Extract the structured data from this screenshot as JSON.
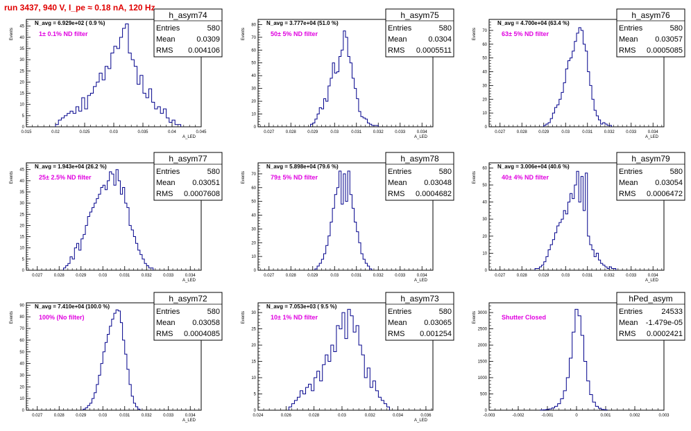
{
  "page": {
    "title": "run 3437,   940 V, I_pe ≈ 0.18 nA, 120 Hz"
  },
  "chart_data": [
    {
      "type": "histogram",
      "name": "h_asym74",
      "entries": "580",
      "mean": "0.0309",
      "rms": "0.004106",
      "navg_label": "N_avg = 6.929e+02 ( 0.9 %)",
      "filter_label": "1± 0.1% ND filter",
      "xlabel": "A_LED",
      "ylabel": "Events",
      "xlim": [
        0.015,
        0.045
      ],
      "ylim": [
        0,
        48
      ],
      "xticks": [
        0.015,
        0.02,
        0.025,
        0.03,
        0.035,
        0.04,
        0.045
      ],
      "xtick_labels": [
        "0.015",
        "0.02",
        "0.025",
        "0.03",
        "0.035",
        "0.04",
        "0.045"
      ],
      "yticks": [
        0,
        5,
        10,
        15,
        20,
        25,
        30,
        35,
        40,
        45
      ],
      "bin_edges": [
        0.02,
        0.0205,
        0.021,
        0.0215,
        0.022,
        0.0225,
        0.023,
        0.0235,
        0.024,
        0.0245,
        0.025,
        0.0255,
        0.026,
        0.0265,
        0.027,
        0.0275,
        0.028,
        0.0285,
        0.029,
        0.0295,
        0.03,
        0.0305,
        0.031,
        0.0315,
        0.032,
        0.0325,
        0.033,
        0.0335,
        0.034,
        0.0345,
        0.035,
        0.0355,
        0.036,
        0.0365,
        0.037,
        0.0375,
        0.038,
        0.0385,
        0.039,
        0.0395,
        0.04,
        0.0405,
        0.041,
        0.0415
      ],
      "counts": [
        1,
        3,
        4,
        5,
        6,
        7,
        6,
        9,
        7,
        13,
        8,
        14,
        15,
        18,
        20,
        24,
        21,
        27,
        26,
        33,
        36,
        35,
        40,
        44,
        46,
        33,
        30,
        27,
        19,
        23,
        15,
        13,
        17,
        11,
        8,
        9,
        6,
        8,
        4,
        2,
        3,
        1,
        1
      ]
    },
    {
      "type": "histogram",
      "name": "h_asym75",
      "entries": "580",
      "mean": "0.0304",
      "rms": "0.0005511",
      "navg_label": "N_avg = 3.777e+04 (51.0 %)",
      "filter_label": "50± 5% ND filter",
      "xlabel": "A_LED",
      "ylabel": "Events",
      "xlim": [
        0.0265,
        0.0345
      ],
      "ylim": [
        0,
        84
      ],
      "xticks": [
        0.027,
        0.028,
        0.029,
        0.03,
        0.031,
        0.032,
        0.033,
        0.034
      ],
      "xtick_labels": [
        "0.027",
        "0.028",
        "0.029",
        "0.03",
        "0.031",
        "0.032",
        "0.033",
        "0.034"
      ],
      "yticks": [
        0,
        10,
        20,
        30,
        40,
        50,
        60,
        70,
        80
      ],
      "bin_edges": [
        0.0289,
        0.029,
        0.0291,
        0.0292,
        0.0293,
        0.0294,
        0.0295,
        0.0296,
        0.0297,
        0.0298,
        0.0299,
        0.03,
        0.0301,
        0.0302,
        0.0303,
        0.0304,
        0.0305,
        0.0306,
        0.0307,
        0.0308,
        0.0309,
        0.031,
        0.0311,
        0.0312,
        0.0313,
        0.0314,
        0.0315,
        0.0316,
        0.0317,
        0.0318,
        0.0319,
        0.032
      ],
      "counts": [
        2,
        3,
        6,
        10,
        15,
        14,
        22,
        20,
        32,
        38,
        50,
        42,
        43,
        55,
        60,
        75,
        70,
        55,
        50,
        38,
        30,
        22,
        12,
        8,
        7,
        6,
        3,
        2,
        1,
        1,
        1
      ]
    },
    {
      "type": "histogram",
      "name": "h_asym76",
      "entries": "580",
      "mean": "0.03057",
      "rms": "0.0005085",
      "navg_label": "N_avg = 4.700e+04 (63.4 %)",
      "filter_label": "63± 5% ND filter",
      "xlabel": "A_LED",
      "ylabel": "Events",
      "xlim": [
        0.0265,
        0.0345
      ],
      "ylim": [
        0,
        78
      ],
      "xticks": [
        0.027,
        0.028,
        0.029,
        0.03,
        0.031,
        0.032,
        0.033,
        0.034
      ],
      "xtick_labels": [
        "0.027",
        "0.028",
        "0.029",
        "0.03",
        "0.031",
        "0.032",
        "0.033",
        "0.034"
      ],
      "yticks": [
        0,
        10,
        20,
        30,
        40,
        50,
        60,
        70
      ],
      "bin_edges": [
        0.029,
        0.0291,
        0.0292,
        0.0293,
        0.0294,
        0.0295,
        0.0296,
        0.0297,
        0.0298,
        0.0299,
        0.03,
        0.0301,
        0.0302,
        0.0303,
        0.0304,
        0.0305,
        0.0306,
        0.0307,
        0.0308,
        0.0309,
        0.031,
        0.0311,
        0.0312,
        0.0313,
        0.0314,
        0.0315,
        0.0316,
        0.0317,
        0.0318,
        0.0319,
        0.032,
        0.0321
      ],
      "counts": [
        1,
        2,
        3,
        6,
        10,
        14,
        16,
        20,
        25,
        32,
        42,
        48,
        50,
        55,
        62,
        68,
        72,
        70,
        60,
        55,
        40,
        30,
        20,
        12,
        8,
        5,
        2,
        3,
        2,
        1,
        1
      ]
    },
    {
      "type": "histogram",
      "name": "h_asym77",
      "entries": "580",
      "mean": "0.03051",
      "rms": "0.0007608",
      "navg_label": "N_avg = 1.943e+04 (26.2 %)",
      "filter_label": "25± 2.5% ND filter",
      "xlabel": "A_LED",
      "ylabel": "Events",
      "xlim": [
        0.0265,
        0.0345
      ],
      "ylim": [
        0,
        48
      ],
      "xticks": [
        0.027,
        0.028,
        0.029,
        0.03,
        0.031,
        0.032,
        0.033,
        0.034
      ],
      "xtick_labels": [
        "0.027",
        "0.028",
        "0.029",
        "0.03",
        "0.031",
        "0.032",
        "0.033",
        "0.034"
      ],
      "yticks": [
        0,
        5,
        10,
        15,
        20,
        25,
        30,
        35,
        40,
        45
      ],
      "bin_edges": [
        0.0282,
        0.0283,
        0.0284,
        0.0285,
        0.0286,
        0.0287,
        0.0288,
        0.0289,
        0.029,
        0.0291,
        0.0292,
        0.0293,
        0.0294,
        0.0295,
        0.0296,
        0.0297,
        0.0298,
        0.0299,
        0.03,
        0.0301,
        0.0302,
        0.0303,
        0.0304,
        0.0305,
        0.0306,
        0.0307,
        0.0308,
        0.0309,
        0.031,
        0.0311,
        0.0312,
        0.0313,
        0.0314,
        0.0315,
        0.0316,
        0.0317,
        0.0318,
        0.0319,
        0.032,
        0.0321,
        0.0322,
        0.0323
      ],
      "counts": [
        1,
        2,
        3,
        6,
        5,
        10,
        12,
        9,
        14,
        16,
        20,
        24,
        26,
        28,
        30,
        32,
        34,
        37,
        38,
        36,
        40,
        44,
        43,
        38,
        45,
        40,
        34,
        37,
        30,
        28,
        20,
        18,
        15,
        12,
        9,
        7,
        5,
        3,
        2,
        1,
        1
      ]
    },
    {
      "type": "histogram",
      "name": "h_asym78",
      "entries": "580",
      "mean": "0.03048",
      "rms": "0.0004682",
      "navg_label": "N_avg = 5.898e+04 (79.6 %)",
      "filter_label": "79± 5% ND filter",
      "xlabel": "A_LED",
      "ylabel": "Events",
      "xlim": [
        0.0265,
        0.0345
      ],
      "ylim": [
        0,
        78
      ],
      "xticks": [
        0.027,
        0.028,
        0.029,
        0.03,
        0.031,
        0.032,
        0.033,
        0.034
      ],
      "xtick_labels": [
        "0.027",
        "0.028",
        "0.029",
        "0.03",
        "0.031",
        "0.032",
        "0.033",
        "0.034"
      ],
      "yticks": [
        0,
        10,
        20,
        30,
        40,
        50,
        60,
        70
      ],
      "bin_edges": [
        0.0291,
        0.0292,
        0.0293,
        0.0294,
        0.0295,
        0.0296,
        0.0297,
        0.0298,
        0.0299,
        0.03,
        0.0301,
        0.0302,
        0.0303,
        0.0304,
        0.0305,
        0.0306,
        0.0307,
        0.0308,
        0.0309,
        0.031,
        0.0311,
        0.0312,
        0.0313,
        0.0314,
        0.0315,
        0.0316,
        0.0317
      ],
      "counts": [
        1,
        3,
        5,
        8,
        12,
        18,
        25,
        35,
        45,
        55,
        60,
        72,
        48,
        70,
        50,
        72,
        55,
        45,
        35,
        28,
        20,
        12,
        8,
        5,
        3,
        1
      ]
    },
    {
      "type": "histogram",
      "name": "h_asym79",
      "entries": "580",
      "mean": "0.03054",
      "rms": "0.0006472",
      "navg_label": "N_avg = 3.006e+04 (40.6 %)",
      "filter_label": "40± 4% ND filter",
      "xlabel": "A_LED",
      "ylabel": "Events",
      "xlim": [
        0.0265,
        0.0345
      ],
      "ylim": [
        0,
        63
      ],
      "xticks": [
        0.027,
        0.028,
        0.029,
        0.03,
        0.031,
        0.032,
        0.033,
        0.034
      ],
      "xtick_labels": [
        "0.027",
        "0.028",
        "0.029",
        "0.03",
        "0.031",
        "0.032",
        "0.033",
        "0.034"
      ],
      "yticks": [
        0,
        10,
        20,
        30,
        40,
        50,
        60
      ],
      "bin_edges": [
        0.0286,
        0.0287,
        0.0288,
        0.0289,
        0.029,
        0.0291,
        0.0292,
        0.0293,
        0.0294,
        0.0295,
        0.0296,
        0.0297,
        0.0298,
        0.0299,
        0.03,
        0.0301,
        0.0302,
        0.0303,
        0.0304,
        0.0305,
        0.0306,
        0.0307,
        0.0308,
        0.0309,
        0.031,
        0.0311,
        0.0312,
        0.0313,
        0.0314,
        0.0315,
        0.0316,
        0.0317,
        0.0318,
        0.0319,
        0.032,
        0.0321,
        0.0322,
        0.0323
      ],
      "counts": [
        1,
        1,
        2,
        3,
        5,
        8,
        12,
        15,
        18,
        22,
        26,
        28,
        30,
        35,
        33,
        40,
        45,
        42,
        50,
        58,
        40,
        55,
        35,
        57,
        20,
        15,
        12,
        8,
        10,
        6,
        4,
        3,
        2,
        1,
        2,
        1,
        1
      ]
    },
    {
      "type": "histogram",
      "name": "h_asym72",
      "entries": "580",
      "mean": "0.03058",
      "rms": "0.0004085",
      "navg_label": "N_avg = 7.410e+04 (100.0 %)",
      "filter_label": "100% (No filter)",
      "xlabel": "A_LED",
      "ylabel": "Events",
      "xlim": [
        0.0265,
        0.0345
      ],
      "ylim": [
        0,
        92
      ],
      "xticks": [
        0.027,
        0.028,
        0.029,
        0.03,
        0.031,
        0.032,
        0.033,
        0.034
      ],
      "xtick_labels": [
        "0.027",
        "0.028",
        "0.029",
        "0.03",
        "0.031",
        "0.032",
        "0.033",
        "0.034"
      ],
      "yticks": [
        0,
        10,
        20,
        30,
        40,
        50,
        60,
        70,
        80,
        90
      ],
      "bin_edges": [
        0.0291,
        0.0292,
        0.0293,
        0.0294,
        0.0295,
        0.0296,
        0.0297,
        0.0298,
        0.0299,
        0.03,
        0.0301,
        0.0302,
        0.0303,
        0.0304,
        0.0305,
        0.0306,
        0.0307,
        0.0308,
        0.0309,
        0.031,
        0.0311,
        0.0312,
        0.0313,
        0.0314,
        0.0315,
        0.0316,
        0.0317
      ],
      "counts": [
        1,
        2,
        4,
        6,
        10,
        15,
        22,
        30,
        40,
        50,
        58,
        65,
        72,
        78,
        83,
        86,
        85,
        75,
        60,
        48,
        35,
        22,
        12,
        6,
        3,
        1
      ]
    },
    {
      "type": "histogram",
      "name": "h_asym73",
      "entries": "580",
      "mean": "0.03065",
      "rms": "0.001254",
      "navg_label": "N_avg = 7.053e+03 ( 9.5 %)",
      "filter_label": "10± 1% ND filter",
      "xlabel": "A_LED",
      "ylabel": "Events",
      "xlim": [
        0.024,
        0.0365
      ],
      "ylim": [
        0,
        33
      ],
      "xticks": [
        0.024,
        0.026,
        0.028,
        0.03,
        0.032,
        0.034,
        0.036
      ],
      "xtick_labels": [
        "0.024",
        "0.026",
        "0.028",
        "0.03",
        "0.032",
        "0.034",
        "0.036"
      ],
      "yticks": [
        0,
        5,
        10,
        15,
        20,
        25,
        30
      ],
      "bin_edges": [
        0.0262,
        0.0264,
        0.0266,
        0.0268,
        0.027,
        0.0272,
        0.0274,
        0.0276,
        0.0278,
        0.028,
        0.0282,
        0.0284,
        0.0286,
        0.0288,
        0.029,
        0.0292,
        0.0294,
        0.0296,
        0.0298,
        0.03,
        0.0302,
        0.0304,
        0.0306,
        0.0308,
        0.031,
        0.0312,
        0.0314,
        0.0316,
        0.0318,
        0.032,
        0.0322,
        0.0324,
        0.0326,
        0.0328,
        0.033,
        0.0332,
        0.0334
      ],
      "counts": [
        1,
        2,
        3,
        4,
        6,
        5,
        7,
        8,
        6,
        10,
        12,
        9,
        14,
        17,
        15,
        20,
        18,
        26,
        25,
        30,
        22,
        31,
        29,
        24,
        26,
        20,
        17,
        10,
        13,
        7,
        9,
        6,
        4,
        3,
        2,
        1
      ]
    },
    {
      "type": "histogram",
      "name": "hPed_asym",
      "entries": "24533",
      "mean": "-1.479e-05",
      "rms": "0.0002421",
      "navg_label": "",
      "filter_label": "Shutter Closed",
      "xlabel": "",
      "ylabel": "Events",
      "xlim": [
        -0.003,
        0.003
      ],
      "ylim": [
        0,
        3300
      ],
      "xticks": [
        -0.003,
        -0.002,
        -0.001,
        0,
        0.001,
        0.002,
        0.003
      ],
      "xtick_labels": [
        "-0.003",
        "-0.002",
        "-0.001",
        "0",
        "0.001",
        "0.002",
        "0.003"
      ],
      "yticks": [
        0,
        500,
        1000,
        1500,
        2000,
        2500,
        3000
      ],
      "bin_edges": [
        -0.00125,
        -0.00115,
        -0.00105,
        -0.00095,
        -0.00085,
        -0.00075,
        -0.00065,
        -0.00055,
        -0.00045,
        -0.00035,
        -0.00025,
        -0.00015,
        -5e-05,
        5e-05,
        0.00015,
        0.00025,
        0.00035,
        0.00045,
        0.00055,
        0.00065,
        0.00075,
        0.00085,
        0.00095,
        0.00105
      ],
      "counts": [
        5,
        10,
        20,
        40,
        70,
        120,
        200,
        350,
        600,
        1000,
        1600,
        2400,
        3100,
        2900,
        2300,
        1500,
        900,
        480,
        250,
        120,
        60,
        25,
        10
      ]
    }
  ]
}
